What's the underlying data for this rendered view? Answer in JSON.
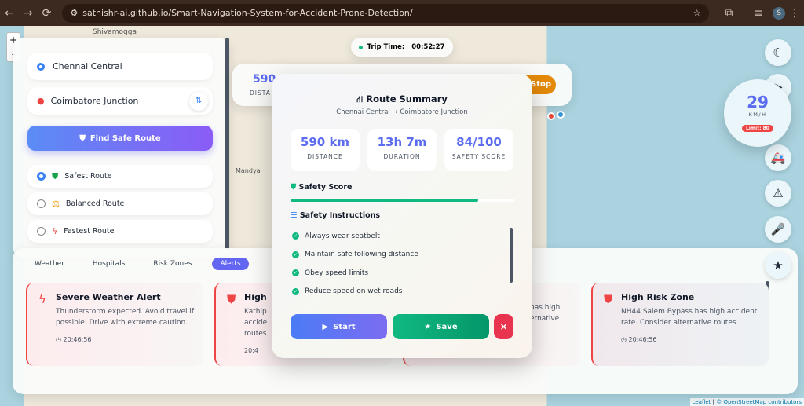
{
  "browser": {
    "url": "sathishr-ai.github.io/Smart-Navigation-System-for-Accident-Prone-Detection/",
    "profile": "S"
  },
  "map": {
    "zoom_in": "+",
    "zoom_out": "-",
    "label_shivamogga": "Shivamogga",
    "label_mandya": "Mandya",
    "attribution_leaflet": "Leaflet",
    "attribution_osm": "© OpenStreetMap contributors"
  },
  "trip": {
    "label": "Trip Time:",
    "value": "00:52:27"
  },
  "route_form": {
    "origin": "Chennai Central",
    "destination": "Coimbatore Junction",
    "find_button": "Find Safe Route",
    "options": [
      {
        "label": "Safest Route",
        "selected": true
      },
      {
        "label": "Balanced Route",
        "selected": false
      },
      {
        "label": "Fastest Route",
        "selected": false
      }
    ]
  },
  "top_stats": {
    "distance_value": "590",
    "distance_label": "DISTA",
    "stop": "Stop"
  },
  "speed": {
    "value": "29",
    "unit": "KM/H",
    "limit": "Limit: 80"
  },
  "summary": {
    "title": "Route Summary",
    "subtitle": "Chennai Central → Coimbatore Junction",
    "stats": [
      {
        "value": "590 km",
        "label": "DISTANCE"
      },
      {
        "value": "13h 7m",
        "label": "DURATION"
      },
      {
        "value": "84/100",
        "label": "SAFETY SCORE"
      }
    ],
    "safety_score_label": "Safety Score",
    "safety_score_value": 84,
    "instructions_label": "Safety Instructions",
    "instructions": [
      "Always wear seatbelt",
      "Maintain safe following distance",
      "Obey speed limits",
      "Reduce speed on wet roads"
    ],
    "start": "Start",
    "save": "Save",
    "close": "×"
  },
  "panel": {
    "tabs": [
      "Weather",
      "Hospitals",
      "Risk Zones",
      "Alerts"
    ],
    "active_tab": "Alerts",
    "alerts": [
      {
        "title": "Severe Weather Alert",
        "text": "Thunderstorm expected. Avoid travel if possible. Drive with extreme caution.",
        "time": "20:46:56"
      },
      {
        "title": "High",
        "text": "Kathip accide routes",
        "time": "20:4"
      },
      {
        "title": "",
        "text": "has high ernative",
        "time": ""
      },
      {
        "title": "High Risk Zone",
        "text": "NH44 Salem Bypass has high accident rate. Consider alternative routes.",
        "time": "20:46:56"
      }
    ]
  },
  "colors": {
    "accent": "#5b6cf0",
    "success": "#10b981",
    "danger": "#ef4444",
    "warning": "#f59e0b"
  }
}
